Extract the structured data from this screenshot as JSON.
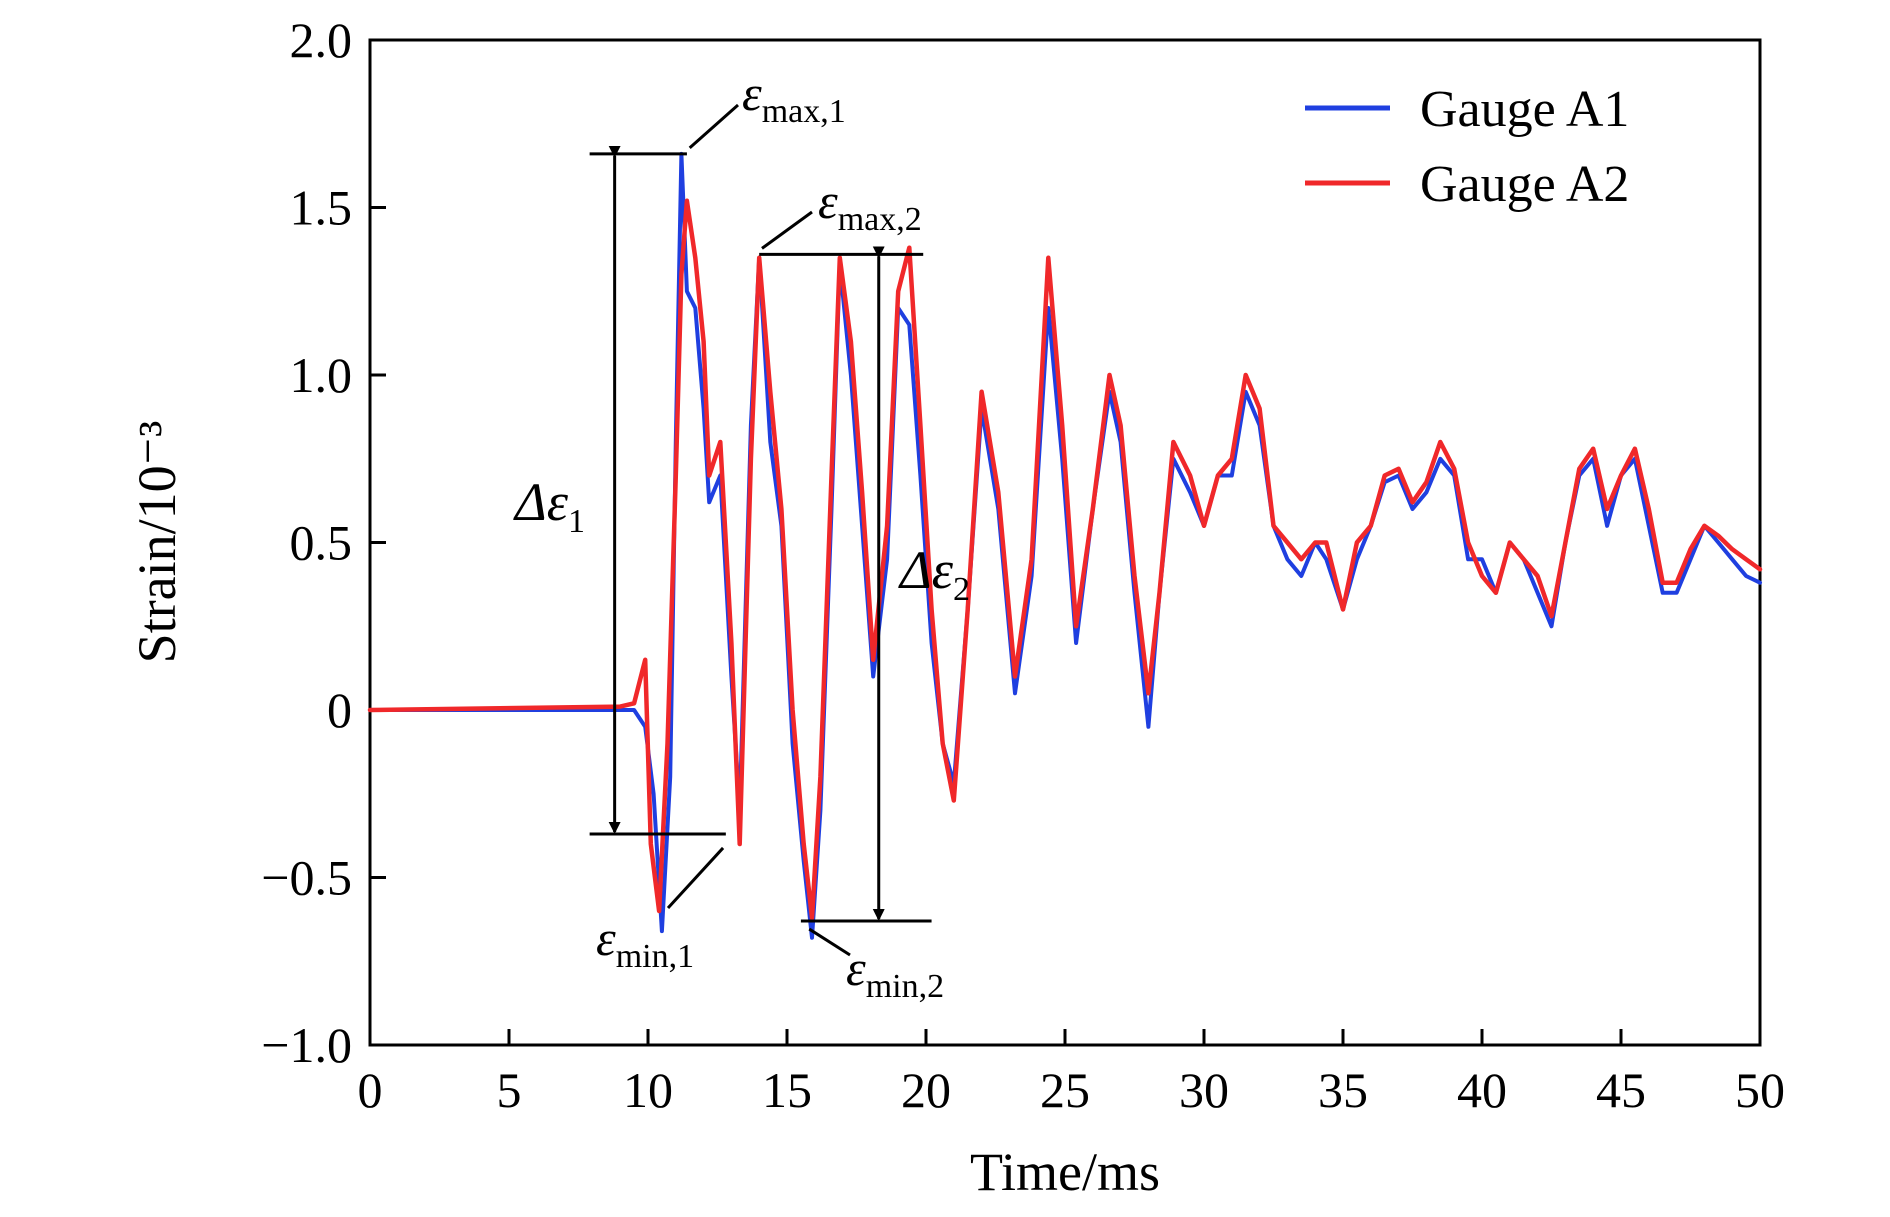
{
  "chart_data": {
    "type": "line",
    "title": "",
    "xlabel": "Time/ms",
    "ylabel": "Strain/10⁻³",
    "xlim": [
      0,
      50
    ],
    "ylim": [
      -1.0,
      2.0
    ],
    "xticks": [
      0,
      5,
      10,
      15,
      20,
      25,
      30,
      35,
      40,
      45,
      50
    ],
    "xtick_labels": [
      "0",
      "5",
      "10",
      "15",
      "20",
      "25",
      "30",
      "35",
      "40",
      "45",
      "50"
    ],
    "yticks": [
      -1.0,
      -0.5,
      0,
      0.5,
      1.0,
      1.5,
      2.0
    ],
    "ytick_labels": [
      "−1.0",
      "−0.5",
      "0",
      "0.5",
      "1.0",
      "1.5",
      "2.0"
    ],
    "grid": false,
    "legend": "top-right",
    "series": [
      {
        "name": "Gauge A1",
        "color": "#1f3fe0",
        "x": [
          0,
          9.0,
          9.5,
          9.9,
          10.2,
          10.5,
          10.8,
          11.0,
          11.2,
          11.4,
          11.7,
          12.0,
          12.2,
          12.6,
          13.0,
          13.3,
          13.7,
          14.0,
          14.4,
          14.8,
          15.2,
          15.6,
          15.9,
          16.2,
          16.6,
          16.9,
          17.3,
          17.7,
          18.1,
          18.6,
          19.0,
          19.4,
          19.8,
          20.2,
          20.6,
          21.0,
          21.5,
          22.0,
          22.6,
          23.2,
          23.8,
          24.4,
          24.9,
          25.4,
          26.0,
          26.6,
          27.0,
          27.5,
          28.0,
          28.4,
          28.9,
          29.5,
          30.0,
          30.5,
          31.0,
          31.5,
          32.0,
          32.5,
          33.0,
          33.5,
          34.0,
          34.4,
          35.0,
          35.5,
          36.0,
          36.5,
          37.0,
          37.5,
          38.0,
          38.5,
          39.0,
          39.5,
          40.0,
          40.5,
          41.0,
          41.5,
          42.0,
          42.5,
          43.0,
          43.5,
          44.0,
          44.5,
          45.0,
          45.5,
          46.0,
          46.5,
          47.0,
          47.5,
          48.0,
          48.5,
          49.0,
          49.5,
          50.0
        ],
        "y": [
          0,
          0,
          0.0,
          -0.05,
          -0.25,
          -0.66,
          -0.2,
          0.8,
          1.66,
          1.25,
          1.2,
          0.9,
          0.62,
          0.7,
          0.1,
          -0.3,
          0.85,
          1.35,
          0.8,
          0.55,
          -0.1,
          -0.45,
          -0.68,
          -0.3,
          0.6,
          1.33,
          1.0,
          0.55,
          0.1,
          0.45,
          1.2,
          1.15,
          0.7,
          0.2,
          -0.1,
          -0.22,
          0.3,
          0.9,
          0.6,
          0.05,
          0.4,
          1.2,
          0.75,
          0.2,
          0.6,
          0.95,
          0.8,
          0.35,
          -0.05,
          0.35,
          0.75,
          0.65,
          0.55,
          0.7,
          0.7,
          0.95,
          0.85,
          0.55,
          0.45,
          0.4,
          0.5,
          0.45,
          0.3,
          0.45,
          0.55,
          0.68,
          0.7,
          0.6,
          0.65,
          0.75,
          0.7,
          0.45,
          0.45,
          0.35,
          0.5,
          0.45,
          0.35,
          0.25,
          0.5,
          0.7,
          0.75,
          0.55,
          0.7,
          0.75,
          0.55,
          0.35,
          0.35,
          0.45,
          0.55,
          0.5,
          0.45,
          0.4,
          0.38
        ]
      },
      {
        "name": "Gauge A2",
        "color": "#f0282a",
        "x": [
          0,
          9.0,
          9.5,
          9.9,
          10.1,
          10.4,
          10.7,
          11.0,
          11.2,
          11.4,
          11.7,
          12.0,
          12.2,
          12.6,
          13.0,
          13.3,
          13.7,
          14.0,
          14.4,
          14.8,
          15.2,
          15.6,
          15.9,
          16.2,
          16.6,
          16.9,
          17.3,
          17.7,
          18.1,
          18.6,
          19.0,
          19.4,
          19.8,
          20.2,
          20.6,
          21.0,
          21.5,
          22.0,
          22.6,
          23.2,
          23.8,
          24.4,
          24.9,
          25.4,
          26.0,
          26.6,
          27.0,
          27.5,
          28.0,
          28.4,
          28.9,
          29.5,
          30.0,
          30.5,
          31.0,
          31.5,
          32.0,
          32.5,
          33.0,
          33.5,
          34.0,
          34.4,
          35.0,
          35.5,
          36.0,
          36.5,
          37.0,
          37.5,
          38.0,
          38.5,
          39.0,
          39.5,
          40.0,
          40.5,
          41.0,
          41.5,
          42.0,
          42.5,
          43.0,
          43.5,
          44.0,
          44.5,
          45.0,
          45.5,
          46.0,
          46.5,
          47.0,
          47.5,
          48.0,
          48.5,
          49.0,
          49.5,
          50.0
        ],
        "y": [
          0,
          0.01,
          0.02,
          0.15,
          -0.4,
          -0.6,
          -0.1,
          0.7,
          1.3,
          1.52,
          1.35,
          1.1,
          0.7,
          0.8,
          0.2,
          -0.4,
          0.75,
          1.35,
          0.95,
          0.6,
          0.0,
          -0.4,
          -0.62,
          -0.2,
          0.7,
          1.35,
          1.1,
          0.65,
          0.15,
          0.55,
          1.25,
          1.38,
          0.85,
          0.3,
          -0.1,
          -0.27,
          0.3,
          0.95,
          0.65,
          0.1,
          0.45,
          1.35,
          0.85,
          0.25,
          0.6,
          1.0,
          0.85,
          0.4,
          0.05,
          0.35,
          0.8,
          0.7,
          0.55,
          0.7,
          0.75,
          1.0,
          0.9,
          0.55,
          0.5,
          0.45,
          0.5,
          0.5,
          0.3,
          0.5,
          0.55,
          0.7,
          0.72,
          0.62,
          0.68,
          0.8,
          0.72,
          0.5,
          0.4,
          0.35,
          0.5,
          0.45,
          0.4,
          0.28,
          0.5,
          0.72,
          0.78,
          0.6,
          0.7,
          0.78,
          0.6,
          0.38,
          0.38,
          0.48,
          0.55,
          0.52,
          0.48,
          0.45,
          0.42
        ]
      }
    ],
    "annotations": {
      "eps_max_1": {
        "symbol": "ε",
        "sub": "max,1"
      },
      "eps_max_2": {
        "symbol": "ε",
        "sub": "max,2"
      },
      "eps_min_1": {
        "symbol": "ε",
        "sub": "min,1"
      },
      "eps_min_2": {
        "symbol": "ε",
        "sub": "min,2"
      },
      "delta_1": {
        "symbol": "Δε",
        "sub": "1"
      },
      "delta_2": {
        "symbol": "Δε",
        "sub": "2"
      },
      "levels": {
        "max_1": 1.66,
        "min_1": -0.37,
        "max_2": 1.36,
        "min_2": -0.63
      }
    }
  }
}
